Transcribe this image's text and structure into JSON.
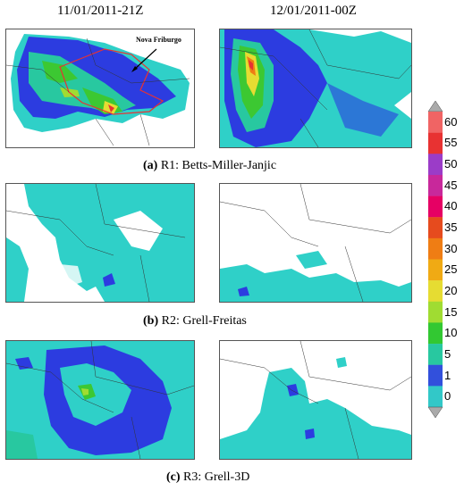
{
  "columns": [
    "11/01/2011-21Z",
    "12/01/2011-00Z"
  ],
  "captions": [
    {
      "tag": "(a)",
      "text": " R1: Betts-Miller-Janjic"
    },
    {
      "tag": "(b)",
      "text": " R2: Grell-Freitas"
    },
    {
      "tag": "(c)",
      "text": " R3: Grell-3D"
    }
  ],
  "annotation": "Nova Friburgo",
  "colorbar": {
    "labels": [
      "60",
      "55",
      "50",
      "45",
      "40",
      "35",
      "30",
      "25",
      "20",
      "15",
      "10",
      "5",
      "1",
      "0"
    ],
    "colors": [
      "#f06464",
      "#e83232",
      "#9b3cc8",
      "#c8289b",
      "#e60064",
      "#e64b1e",
      "#ef7d14",
      "#f0aa14",
      "#e6dc32",
      "#a0dc32",
      "#32c832",
      "#28c8a0",
      "#3250dc",
      "#32c8c8"
    ]
  },
  "colors": {
    "cyan": "#2fd0c8",
    "blue": "#2c3ce0",
    "green": "#3cc832",
    "yellow": "#e6dc32",
    "red": "#e83232",
    "region_border": "#e83232"
  }
}
